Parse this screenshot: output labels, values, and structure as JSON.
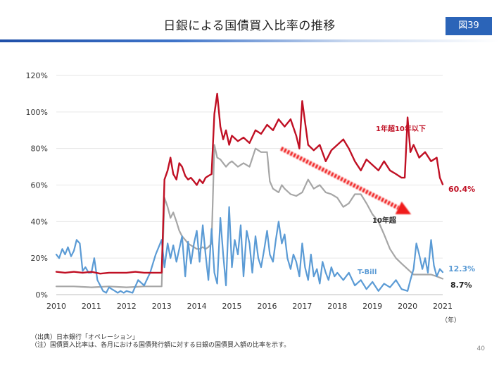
{
  "header": {
    "title": "日銀による国債買入比率の推移",
    "figure_label": "図39"
  },
  "chart_data": {
    "type": "line",
    "xlim": [
      2010,
      2021
    ],
    "ylim": [
      0,
      120
    ],
    "x_ticks": [
      "2010",
      "2011",
      "2012",
      "2013",
      "2014",
      "2015",
      "2016",
      "2017",
      "2018",
      "2019",
      "2020",
      "2021"
    ],
    "y_ticks": [
      "0%",
      "20%",
      "40%",
      "60%",
      "80%",
      "100%",
      "120%"
    ],
    "x_unit": "（年）",
    "grid": true,
    "annotation": {
      "type": "arrow",
      "from": [
        2016.4,
        80
      ],
      "to": [
        2020.1,
        44
      ],
      "color": "#f01e1e"
    },
    "series": [
      {
        "name": "1年超10年以下",
        "color": "#c01024",
        "end_label": "60.4%",
        "x": [
          2010.0,
          2010.25,
          2010.5,
          2010.75,
          2011.0,
          2011.25,
          2011.5,
          2011.75,
          2012.0,
          2012.25,
          2012.5,
          2012.75,
          2012.9,
          2013.0,
          2013.08,
          2013.17,
          2013.25,
          2013.33,
          2013.42,
          2013.5,
          2013.58,
          2013.67,
          2013.75,
          2013.83,
          2013.92,
          2014.0,
          2014.08,
          2014.17,
          2014.25,
          2014.33,
          2014.42,
          2014.5,
          2014.58,
          2014.67,
          2014.75,
          2014.83,
          2014.92,
          2015.0,
          2015.17,
          2015.33,
          2015.5,
          2015.67,
          2015.83,
          2016.0,
          2016.17,
          2016.33,
          2016.5,
          2016.67,
          2016.83,
          2016.92,
          2017.0,
          2017.17,
          2017.33,
          2017.5,
          2017.67,
          2017.83,
          2018.0,
          2018.17,
          2018.33,
          2018.5,
          2018.67,
          2018.83,
          2019.0,
          2019.17,
          2019.33,
          2019.5,
          2019.67,
          2019.83,
          2019.92,
          2020.0,
          2020.08,
          2020.17,
          2020.33,
          2020.5,
          2020.67,
          2020.83,
          2020.92,
          2021.0
        ],
        "y": [
          12.5,
          12.0,
          12.5,
          12.0,
          12.5,
          11.5,
          12.0,
          12.0,
          12.0,
          12.5,
          12.0,
          12.0,
          12.0,
          12.0,
          63,
          68,
          75,
          66,
          63,
          72,
          70,
          65,
          63,
          64,
          62,
          60,
          63,
          61,
          64,
          65,
          66,
          99,
          110,
          92,
          85,
          90,
          82,
          87,
          84,
          86,
          83,
          90,
          88,
          93,
          90,
          96,
          92,
          96,
          87,
          80,
          106,
          82,
          79,
          82,
          73,
          79,
          82,
          85,
          80,
          73,
          68,
          74,
          71,
          68,
          73,
          68,
          66,
          64,
          64,
          97,
          78,
          82,
          75,
          78,
          73,
          75,
          64,
          60.4
        ]
      },
      {
        "name": "10年超",
        "color": "#a6a6a6",
        "end_label": "8.7%",
        "x": [
          2010.0,
          2010.5,
          2011.0,
          2011.5,
          2012.0,
          2012.5,
          2012.9,
          2013.0,
          2013.08,
          2013.17,
          2013.25,
          2013.33,
          2013.42,
          2013.5,
          2013.58,
          2013.67,
          2013.75,
          2013.83,
          2013.92,
          2014.0,
          2014.08,
          2014.17,
          2014.25,
          2014.33,
          2014.42,
          2014.5,
          2014.58,
          2014.67,
          2014.75,
          2014.83,
          2014.92,
          2015.0,
          2015.17,
          2015.33,
          2015.5,
          2015.67,
          2015.83,
          2016.0,
          2016.08,
          2016.17,
          2016.25,
          2016.33,
          2016.42,
          2016.5,
          2016.67,
          2016.83,
          2017.0,
          2017.17,
          2017.33,
          2017.5,
          2017.67,
          2017.83,
          2018.0,
          2018.17,
          2018.33,
          2018.5,
          2018.67,
          2018.83,
          2019.0,
          2019.17,
          2019.33,
          2019.5,
          2019.67,
          2019.83,
          2020.0,
          2020.17,
          2020.33,
          2020.5,
          2020.67,
          2020.83,
          2021.0
        ],
        "y": [
          4.5,
          4.5,
          4.0,
          4.5,
          4.0,
          4.5,
          4.5,
          4.5,
          53,
          48,
          42,
          45,
          40,
          35,
          32,
          30,
          28,
          27,
          26,
          25,
          25,
          26,
          25,
          26,
          28,
          82,
          75,
          74,
          72,
          70,
          72,
          73,
          70,
          72,
          70,
          80,
          78,
          78,
          62,
          58,
          57,
          56,
          60,
          58,
          55,
          54,
          56,
          63,
          58,
          60,
          56,
          55,
          53,
          48,
          50,
          55,
          55,
          50,
          44,
          40,
          33,
          25,
          20,
          17,
          14,
          11,
          11,
          11,
          11,
          10,
          8.7
        ]
      },
      {
        "name": "T-Bill",
        "color": "#5b9bd5",
        "end_label": "12.3%",
        "x": [
          2010.0,
          2010.08,
          2010.17,
          2010.25,
          2010.33,
          2010.42,
          2010.5,
          2010.58,
          2010.67,
          2010.75,
          2010.83,
          2010.92,
          2011.0,
          2011.08,
          2011.17,
          2011.25,
          2011.33,
          2011.42,
          2011.5,
          2011.58,
          2011.67,
          2011.75,
          2011.83,
          2011.92,
          2012.0,
          2012.17,
          2012.33,
          2012.5,
          2012.67,
          2012.83,
          2013.0,
          2013.08,
          2013.17,
          2013.25,
          2013.33,
          2013.42,
          2013.5,
          2013.58,
          2013.67,
          2013.75,
          2013.83,
          2013.92,
          2014.0,
          2014.08,
          2014.17,
          2014.25,
          2014.33,
          2014.42,
          2014.5,
          2014.58,
          2014.67,
          2014.75,
          2014.83,
          2014.92,
          2015.0,
          2015.08,
          2015.17,
          2015.25,
          2015.33,
          2015.42,
          2015.5,
          2015.58,
          2015.67,
          2015.75,
          2015.83,
          2015.92,
          2016.0,
          2016.08,
          2016.17,
          2016.25,
          2016.33,
          2016.42,
          2016.5,
          2016.58,
          2016.67,
          2016.75,
          2016.83,
          2016.92,
          2017.0,
          2017.08,
          2017.17,
          2017.25,
          2017.33,
          2017.42,
          2017.5,
          2017.58,
          2017.67,
          2017.75,
          2017.83,
          2017.92,
          2018.0,
          2018.17,
          2018.33,
          2018.5,
          2018.67,
          2018.83,
          2019.0,
          2019.17,
          2019.33,
          2019.5,
          2019.67,
          2019.83,
          2020.0,
          2020.08,
          2020.17,
          2020.25,
          2020.33,
          2020.42,
          2020.5,
          2020.58,
          2020.67,
          2020.75,
          2020.83,
          2020.92,
          2021.0
        ],
        "y": [
          22,
          20,
          25,
          22,
          26,
          21,
          24,
          30,
          28,
          13,
          15,
          12,
          12,
          20,
          8,
          5,
          2,
          1,
          4,
          3,
          2,
          1,
          2,
          1,
          2,
          1,
          8,
          5,
          12,
          22,
          30,
          15,
          28,
          20,
          27,
          18,
          25,
          32,
          10,
          29,
          17,
          28,
          35,
          18,
          38,
          22,
          8,
          36,
          12,
          6,
          42,
          22,
          5,
          48,
          15,
          30,
          22,
          38,
          10,
          35,
          28,
          12,
          32,
          20,
          15,
          25,
          35,
          22,
          18,
          30,
          40,
          28,
          33,
          20,
          14,
          22,
          18,
          10,
          28,
          15,
          8,
          22,
          10,
          14,
          6,
          18,
          12,
          8,
          15,
          10,
          12,
          8,
          12,
          5,
          8,
          3,
          7,
          2,
          6,
          4,
          8,
          3,
          2,
          8,
          14,
          28,
          22,
          14,
          20,
          12,
          30,
          16,
          10,
          14,
          12.3
        ]
      }
    ]
  },
  "labels": {
    "s1": "1年超10年以下",
    "s2": "10年超",
    "s3": "T-Bill",
    "v1": "60.4%",
    "v2": "8.7%",
    "v3": "12.3%",
    "xunit": "（年）"
  },
  "footer": {
    "source": "（出典）日本銀行「オペレーション」",
    "note": "（注）国債買入比率は、各月における国債発行額に対する日銀の国債買入額の比率を示す。",
    "page": "40"
  }
}
